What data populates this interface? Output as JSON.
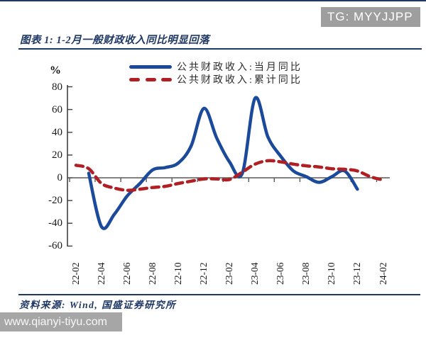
{
  "badge": {
    "text": "TG: MYYJJPP",
    "bg": "#9e9e9e",
    "fg": "#ffffff"
  },
  "figure": {
    "title": "图表 1: 1-2月一般财政收入同比明显回落",
    "title_color": "#1f3864",
    "source": "资料来源: Wind, 国盛证券研究所"
  },
  "watermark": {
    "text": "www.qianyi-tiyu.com",
    "bg": "#a6a6a6",
    "fg": "#f7f7f7"
  },
  "chart_data": {
    "type": "line",
    "title": "图表 1: 1-2月一般财政收入同比明显回落",
    "xlabel": "",
    "ylabel": "%",
    "ylim": [
      -60,
      80
    ],
    "yticks": [
      80,
      60,
      40,
      20,
      0,
      -20,
      -40,
      -60
    ],
    "x_tick_labels": [
      "22-02",
      "22-04",
      "22-06",
      "22-08",
      "22-10",
      "22-12",
      "23-02",
      "23-04",
      "23-06",
      "23-08",
      "23-10",
      "23-12",
      "24-02"
    ],
    "grid": false,
    "legend_position": "top-center",
    "axis_color": "#404040",
    "zero_line_color": "#595959",
    "series": [
      {
        "name": "公共财政收入:当月同比",
        "color": "#1b4a9b",
        "line_style": "solid",
        "points": [
          [
            "22-03",
            4
          ],
          [
            "22-04",
            -43
          ],
          [
            "22-05",
            -32
          ],
          [
            "22-06",
            -16
          ],
          [
            "22-07",
            -5
          ],
          [
            "22-08",
            7
          ],
          [
            "22-09",
            9
          ],
          [
            "22-10",
            13
          ],
          [
            "22-11",
            28
          ],
          [
            "22-12",
            61
          ],
          [
            "23-01",
            35
          ],
          [
            "23-02",
            14
          ],
          [
            "23-03",
            4
          ],
          [
            "23-04",
            70
          ],
          [
            "23-05",
            36
          ],
          [
            "23-06",
            19
          ],
          [
            "23-07",
            6
          ],
          [
            "23-08",
            1
          ],
          [
            "23-09",
            -4
          ],
          [
            "23-10",
            1
          ],
          [
            "23-11",
            6
          ],
          [
            "23-12",
            -10
          ]
        ]
      },
      {
        "name": "公共财政收入:累计同比",
        "color": "#b01f24",
        "line_style": "dashed",
        "points": [
          [
            "22-02",
            11
          ],
          [
            "22-03",
            8
          ],
          [
            "22-04",
            -5
          ],
          [
            "22-05",
            -9
          ],
          [
            "22-06",
            -11
          ],
          [
            "22-07",
            -10
          ],
          [
            "22-08",
            -8.5
          ],
          [
            "22-09",
            -7.5
          ],
          [
            "22-10",
            -5
          ],
          [
            "22-11",
            -3
          ],
          [
            "22-12",
            -1
          ],
          [
            "23-01",
            -1
          ],
          [
            "23-02",
            -1.5
          ],
          [
            "23-03",
            5
          ],
          [
            "23-04",
            12
          ],
          [
            "23-05",
            15
          ],
          [
            "23-06",
            14
          ],
          [
            "23-07",
            12
          ],
          [
            "23-08",
            10.5
          ],
          [
            "23-09",
            9.5
          ],
          [
            "23-10",
            8
          ],
          [
            "23-11",
            7.5
          ],
          [
            "23-12",
            6
          ],
          [
            "24-01",
            1
          ],
          [
            "24-02",
            -2
          ]
        ]
      }
    ]
  }
}
